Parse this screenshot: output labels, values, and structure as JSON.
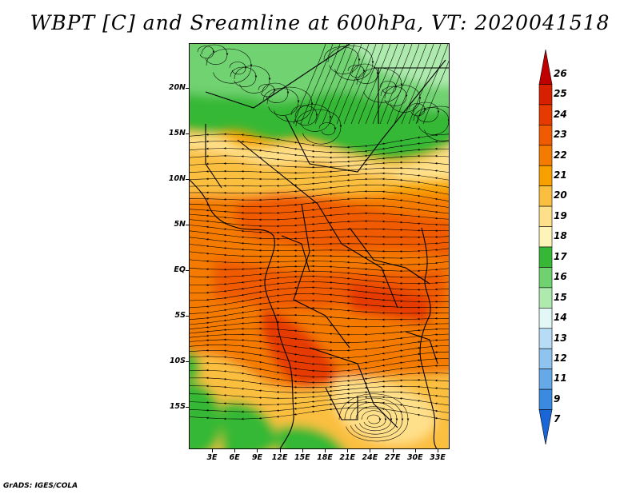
{
  "title": "WBPT [C] and Sreamline at 600hPa, VT: 2020041518",
  "credit": "GrADS: IGES/COLA",
  "map": {
    "projection": "lat-lon",
    "lon_range": [
      0,
      35
    ],
    "lat_range": [
      -20,
      25
    ],
    "lat_ticks": [
      "20N",
      "15N",
      "10N",
      "5N",
      "EQ",
      "5S",
      "10S",
      "15S"
    ],
    "lon_ticks": [
      "3E",
      "6E",
      "9E",
      "12E",
      "15E",
      "18E",
      "21E",
      "24E",
      "27E",
      "30E",
      "33E"
    ]
  },
  "colorbar": {
    "labels": [
      "26",
      "25",
      "24",
      "23",
      "22",
      "21",
      "20",
      "19",
      "18",
      "17",
      "16",
      "15",
      "14",
      "13",
      "12",
      "11",
      "9",
      "7"
    ],
    "colors": [
      "#c00000",
      "#d62000",
      "#e63a00",
      "#f05a00",
      "#f47a00",
      "#f8a000",
      "#fbbf40",
      "#ffe08a",
      "#fff4b8",
      "#36b836",
      "#6fd26f",
      "#aeeaae",
      "#e3f7f7",
      "#b7dcf6",
      "#8fc4f0",
      "#66a9e8",
      "#3a8ae0",
      "#1a66d6"
    ]
  }
}
